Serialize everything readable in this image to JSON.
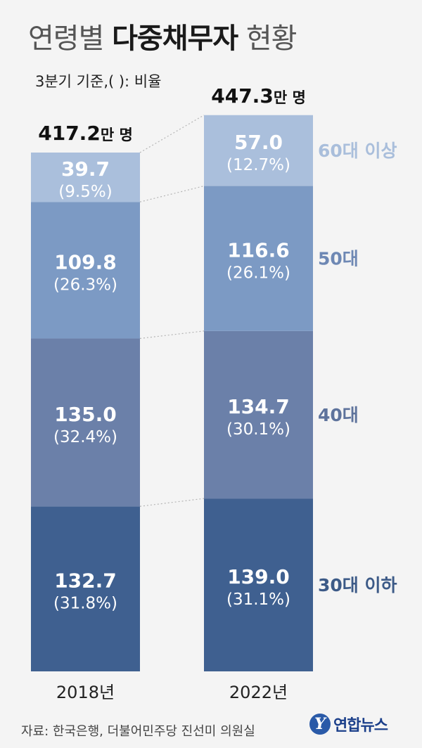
{
  "header": {
    "title_regular_1": "연령별 ",
    "title_bold": "다중채무자",
    "title_regular_2": " 현황",
    "subtitle": "3분기 기준,( ): 비율"
  },
  "chart_data": {
    "type": "bar",
    "stacked": true,
    "categories": [
      "2018년",
      "2022년"
    ],
    "totals": [
      417.2,
      447.3
    ],
    "total_unit": "만 명",
    "series": [
      {
        "name": "30대 이하",
        "values": [
          132.7,
          139.0
        ],
        "percents": [
          "(31.8%)",
          "(31.1%)"
        ],
        "value_labels": [
          "132.7",
          "139.0"
        ],
        "color": "#3f6090"
      },
      {
        "name": "40대",
        "values": [
          135.0,
          134.7
        ],
        "percents": [
          "(32.4%)",
          "(30.1%)"
        ],
        "value_labels": [
          "135.0",
          "134.7"
        ],
        "color": "#6b80a9"
      },
      {
        "name": "50대",
        "values": [
          109.8,
          116.6
        ],
        "percents": [
          "(26.3%)",
          "(26.1%)"
        ],
        "value_labels": [
          "109.8",
          "116.6"
        ],
        "color": "#7c9ac4"
      },
      {
        "name": "60대 이상",
        "values": [
          39.7,
          57.0
        ],
        "percents": [
          "(9.5%)",
          "(12.7%)"
        ],
        "value_labels": [
          "39.7",
          "57.0"
        ],
        "color": "#aabfdc"
      }
    ],
    "legend_colors": [
      "#3c5a87",
      "#5e739c",
      "#6e88b4",
      "#a9bedb"
    ],
    "legend_position": "right"
  },
  "footer": {
    "source": "자료: 한국은행, 더불어민주당 진선미 의원실",
    "logo_mark": "Y",
    "logo_text": "연합뉴스"
  }
}
